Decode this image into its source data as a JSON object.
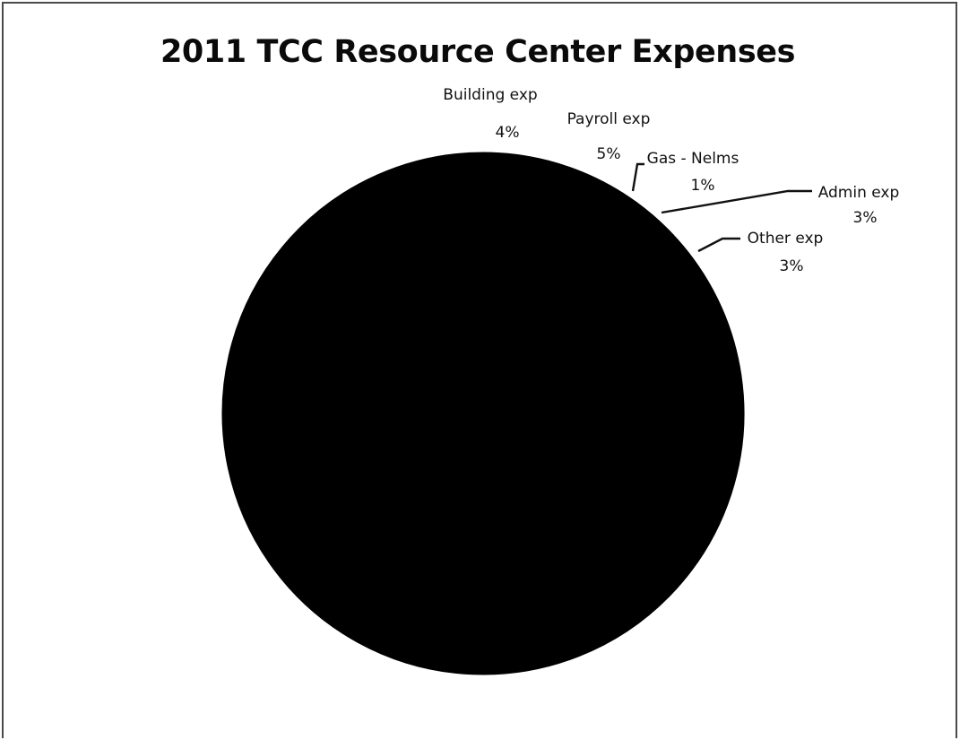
{
  "chart_data": {
    "type": "pie",
    "title": "2011 TCC Resource Center Expenses",
    "slices": [
      {
        "name": "Building exp",
        "label_pct": "4%",
        "value": 4
      },
      {
        "name": "Payroll exp",
        "label_pct": "5%",
        "value": 5
      },
      {
        "name": "Gas - Nelms",
        "label_pct": "1%",
        "value": 1
      },
      {
        "name": "Admin exp",
        "label_pct": "3%",
        "value": 3
      },
      {
        "name": "Other exp",
        "label_pct": "3%",
        "value": 3
      },
      {
        "name": "",
        "label_pct": "",
        "value": 84
      }
    ],
    "legend": "none",
    "colors": {
      "pie_fill": "#000000",
      "background": "#ffffff",
      "frame": "#4a4a4a"
    }
  }
}
